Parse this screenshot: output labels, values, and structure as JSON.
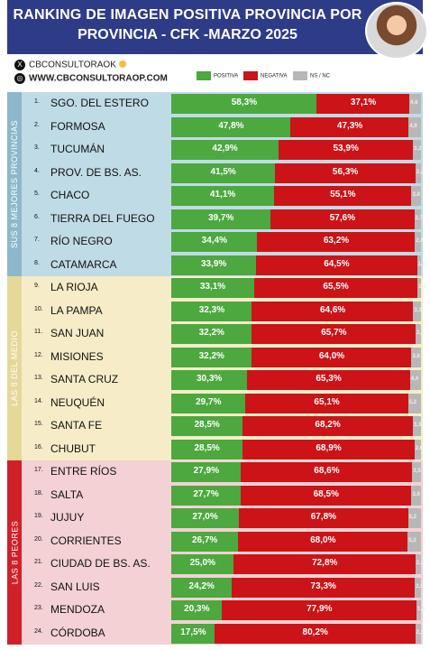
{
  "header": {
    "title_line1": "RANKING DE IMAGEN POSITIVA PROVINCIA POR",
    "title_line2": "PROVINCIA - CFK -MARZO 2025"
  },
  "meta": {
    "x_handle": "CBCONSULTORAOK",
    "website": "WWW.CBCONSULTORAOP.COM"
  },
  "legend": {
    "positive": "POSITIVA",
    "negative": "NEGATIVA",
    "nsnc": "NS / NC"
  },
  "groups": [
    {
      "label": "SUS 8 MEJORES PROVINCIAS",
      "bg": "#bfdbe6",
      "side": "#8db8cb"
    },
    {
      "label": "LAS 8 DEL MEDIO",
      "bg": "#f6edc8",
      "side": "#e6d899"
    },
    {
      "label": "LAS 8 PEORES",
      "bg": "#f3d1d4",
      "side": "#d0202a"
    }
  ],
  "colors": {
    "positive": "#4ca83f",
    "negative": "#cc1317",
    "nsnc": "#b7b7b7"
  },
  "chart_data": {
    "type": "bar",
    "stacked": true,
    "orientation": "horizontal",
    "categories": [
      "SGO. DEL ESTERO",
      "FORMOSA",
      "TUCUMÁN",
      "PROV. DE BS. AS.",
      "CHACO",
      "TIERRA DEL FUEGO",
      "RÍO NEGRO",
      "CATAMARCA",
      "LA RIOJA",
      "LA PAMPA",
      "SAN JUAN",
      "MISIONES",
      "SANTA CRUZ",
      "NEUQUÉN",
      "SANTA FE",
      "CHUBUT",
      "ENTRE RÍOS",
      "SALTA",
      "JUJUY",
      "CORRIENTES",
      "CIUDAD DE BS. AS.",
      "SAN LUIS",
      "MENDOZA",
      "CÓRDOBA"
    ],
    "ranks": [
      "1.",
      "2.",
      "3.",
      "4.",
      "5.",
      "6.",
      "7.",
      "8.",
      "9.",
      "10.",
      "11.",
      "12.",
      "13.",
      "14.",
      "15.",
      "16.",
      "17.",
      "18.",
      "19.",
      "20.",
      "21.",
      "22.",
      "23.",
      "24."
    ],
    "series": [
      {
        "name": "POSITIVA",
        "values": [
          58.3,
          47.8,
          42.9,
          41.5,
          41.1,
          39.7,
          34.4,
          33.9,
          33.1,
          32.3,
          32.2,
          32.2,
          30.3,
          29.7,
          28.5,
          28.5,
          27.9,
          27.7,
          27.0,
          26.7,
          25.0,
          24.2,
          20.3,
          17.5
        ],
        "labels": [
          "58,3%",
          "47,8%",
          "42,9%",
          "41,5%",
          "41,1%",
          "39,7%",
          "34,4%",
          "33,9%",
          "33,1%",
          "32,3%",
          "32,2%",
          "32,2%",
          "30,3%",
          "29,7%",
          "28,5%",
          "28,5%",
          "27,9%",
          "27,7%",
          "27,0%",
          "26,7%",
          "25,0%",
          "24,2%",
          "20,3%",
          "17,5%"
        ]
      },
      {
        "name": "NEGATIVA",
        "values": [
          37.1,
          47.3,
          53.9,
          56.3,
          55.1,
          57.6,
          63.2,
          64.5,
          65.5,
          64.6,
          65.7,
          64.0,
          65.3,
          65.1,
          68.2,
          68.9,
          68.6,
          68.5,
          67.8,
          68.0,
          72.8,
          73.3,
          77.9,
          80.2
        ],
        "labels": [
          "37,1%",
          "47,3%",
          "53,9%",
          "56,3%",
          "55,1%",
          "57,6%",
          "63,2%",
          "64,5%",
          "65,5%",
          "64,6%",
          "65,7%",
          "64,0%",
          "65,3%",
          "65,1%",
          "68,2%",
          "68,9%",
          "68,6%",
          "68,5%",
          "67,8%",
          "68,0%",
          "72,8%",
          "73,3%",
          "77,9%",
          "80,2%"
        ]
      },
      {
        "name": "NS / NC",
        "values": [
          4.6,
          4.9,
          3.2,
          2.2,
          3.8,
          2.7,
          2.4,
          1.6,
          1.4,
          3.1,
          2.1,
          3.8,
          4.4,
          5.2,
          3.3,
          2.6,
          3.5,
          3.8,
          5.2,
          5.3,
          2.2,
          2.5,
          1.8,
          2.3
        ],
        "labels": [
          "4,6",
          "4,9",
          "3,2",
          "2,2",
          "3,8",
          "2,7",
          "2,4",
          "1,6",
          "1,4",
          "3,1",
          "2,1",
          "3,8",
          "4,4",
          "5,2",
          "3,3",
          "2,6",
          "3,5",
          "3,8",
          "5,2",
          "5,3",
          "2,2",
          "2,5",
          "1,8",
          "2,3"
        ]
      }
    ],
    "xlim": [
      0,
      100
    ],
    "grid": false,
    "legend_position": "top"
  }
}
